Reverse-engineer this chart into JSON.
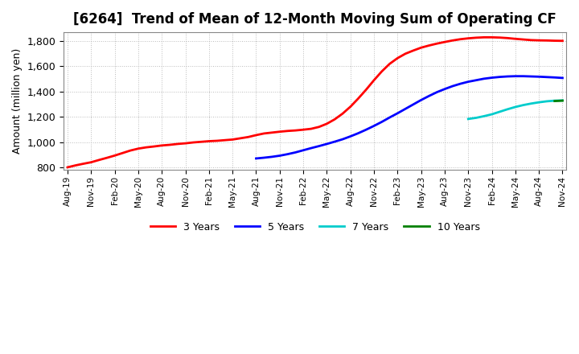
{
  "title": "[6264]  Trend of Mean of 12-Month Moving Sum of Operating CF",
  "ylabel": "Amount (million yen)",
  "ylim": [
    780,
    1870
  ],
  "yticks": [
    800,
    1000,
    1200,
    1400,
    1600,
    1800
  ],
  "series": {
    "3 Years": {
      "color": "#ff0000",
      "x": [
        0,
        1,
        2,
        3,
        4,
        5,
        6,
        7,
        8,
        9,
        10,
        11,
        12,
        13,
        14,
        15,
        16,
        17,
        18,
        19,
        20,
        21,
        22,
        23,
        24,
        25,
        26,
        27,
        28,
        29,
        30,
        31,
        32,
        33,
        34,
        35,
        36,
        37,
        38,
        39,
        40,
        41,
        42,
        43,
        44,
        45,
        46,
        47,
        48,
        49,
        50,
        51,
        52,
        53,
        54,
        55,
        56,
        57,
        58,
        59,
        60,
        61,
        62,
        63
      ],
      "y": [
        800,
        815,
        828,
        840,
        858,
        875,
        893,
        913,
        933,
        948,
        958,
        965,
        973,
        978,
        985,
        990,
        997,
        1002,
        1007,
        1010,
        1015,
        1020,
        1030,
        1040,
        1055,
        1068,
        1075,
        1082,
        1088,
        1092,
        1098,
        1105,
        1120,
        1145,
        1180,
        1225,
        1280,
        1345,
        1415,
        1490,
        1560,
        1620,
        1665,
        1700,
        1725,
        1748,
        1765,
        1780,
        1793,
        1805,
        1815,
        1822,
        1827,
        1830,
        1830,
        1828,
        1824,
        1818,
        1813,
        1808,
        1806,
        1805,
        1803,
        1802
      ]
    },
    "5 Years": {
      "color": "#0000ff",
      "x": [
        24,
        25,
        26,
        27,
        28,
        29,
        30,
        31,
        32,
        33,
        34,
        35,
        36,
        37,
        38,
        39,
        40,
        41,
        42,
        43,
        44,
        45,
        46,
        47,
        48,
        49,
        50,
        51,
        52,
        53,
        54,
        55,
        56,
        57,
        58,
        59,
        60,
        61,
        62,
        63
      ],
      "y": [
        870,
        876,
        883,
        892,
        904,
        918,
        935,
        952,
        968,
        985,
        1003,
        1022,
        1045,
        1070,
        1098,
        1128,
        1160,
        1195,
        1228,
        1263,
        1298,
        1333,
        1365,
        1395,
        1420,
        1443,
        1462,
        1478,
        1490,
        1502,
        1510,
        1516,
        1520,
        1522,
        1522,
        1520,
        1518,
        1515,
        1512,
        1508
      ]
    },
    "7 Years": {
      "color": "#00cccc",
      "x": [
        51,
        52,
        53,
        54,
        55,
        56,
        57,
        58,
        59,
        60,
        61,
        62,
        63
      ],
      "y": [
        1183,
        1192,
        1205,
        1220,
        1240,
        1260,
        1278,
        1293,
        1305,
        1315,
        1323,
        1328,
        1330
      ]
    },
    "10 Years": {
      "color": "#008000",
      "x": [
        62,
        63
      ],
      "y": [
        1325,
        1328
      ]
    }
  },
  "xtick_labels": [
    "Aug-19",
    "Nov-19",
    "Feb-20",
    "May-20",
    "Aug-20",
    "Nov-20",
    "Feb-21",
    "May-21",
    "Aug-21",
    "Nov-21",
    "Feb-22",
    "May-22",
    "Aug-22",
    "Nov-22",
    "Feb-23",
    "May-23",
    "Aug-23",
    "Nov-23",
    "Feb-24",
    "May-24",
    "Aug-24",
    "Nov-24"
  ],
  "xtick_positions": [
    0,
    3,
    6,
    9,
    12,
    15,
    18,
    21,
    24,
    27,
    30,
    33,
    36,
    39,
    42,
    45,
    48,
    51,
    54,
    57,
    60,
    63
  ],
  "grid_color": "#aaaaaa",
  "background_color": "#ffffff",
  "plot_bg_color": "#f0f0f8",
  "title_fontsize": 12,
  "axis_fontsize": 9,
  "legend_labels": [
    "3 Years",
    "5 Years",
    "7 Years",
    "10 Years"
  ],
  "legend_colors": [
    "#ff0000",
    "#0000ff",
    "#00cccc",
    "#008000"
  ]
}
